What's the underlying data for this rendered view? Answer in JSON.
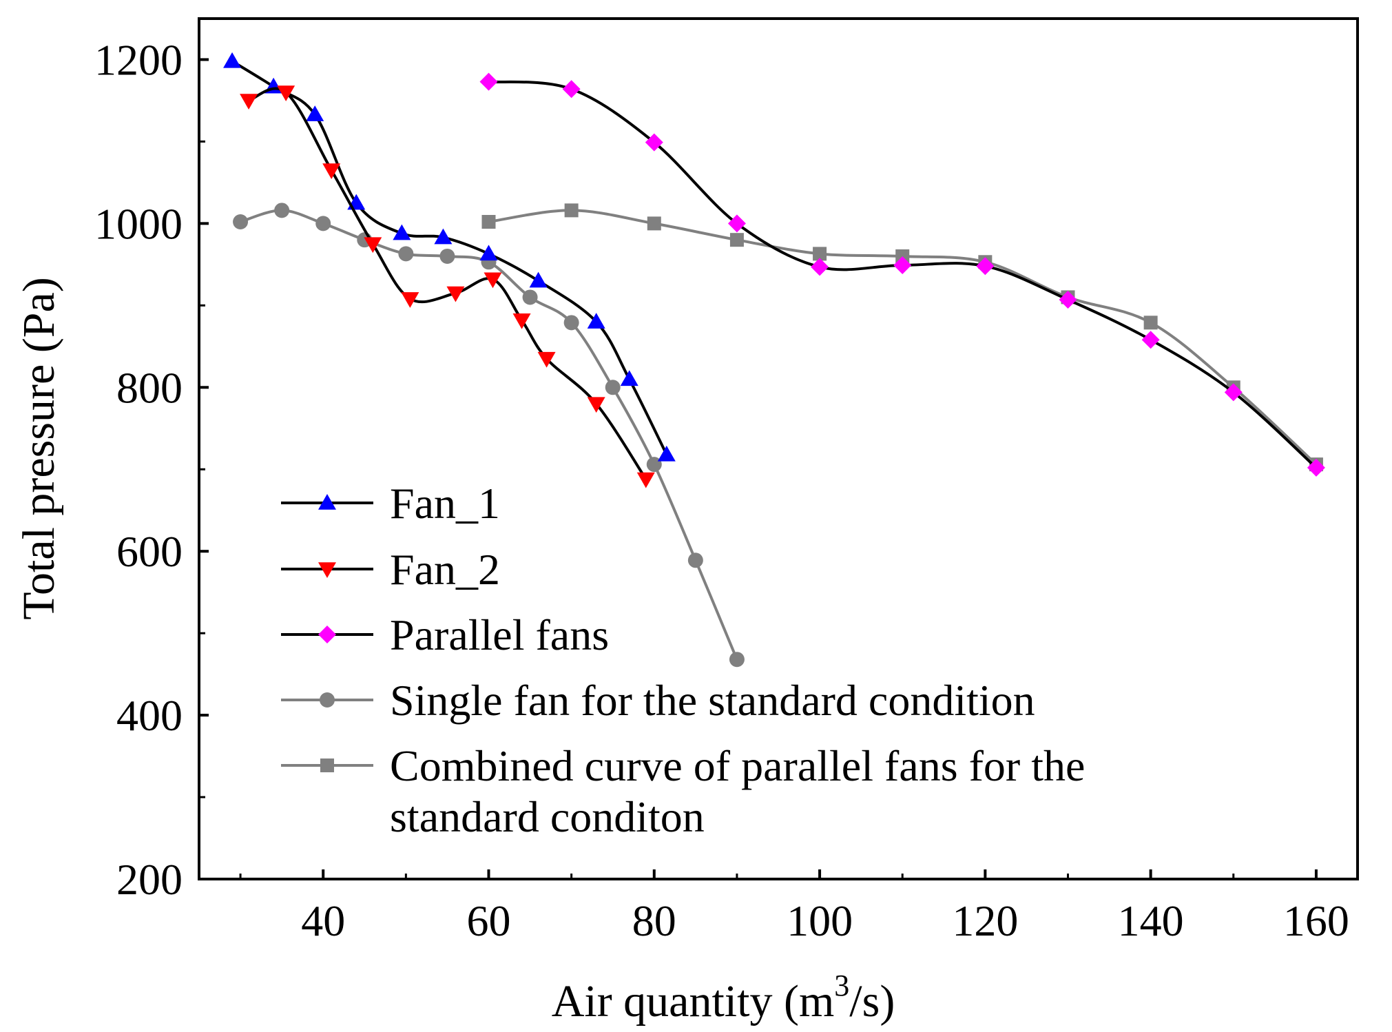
{
  "chart_data": {
    "type": "line",
    "xlabel": "Air quantity (m3/s)",
    "xlabel_base": "Air quantity (m",
    "xlabel_sup": "3",
    "xlabel_tail": "/s)",
    "ylabel": "Total pressure (Pa)",
    "xlim": [
      25,
      165
    ],
    "ylim": [
      200,
      1250
    ],
    "xticks": [
      40,
      60,
      80,
      100,
      120,
      140,
      160
    ],
    "yticks": [
      200,
      400,
      600,
      800,
      1000,
      1200
    ],
    "xtick_labels": [
      "40",
      "60",
      "80",
      "100",
      "120",
      "140",
      "160"
    ],
    "ytick_labels": [
      "200",
      "400",
      "600",
      "800",
      "1000",
      "1200"
    ],
    "legend_position": "bottom-left",
    "legend_lines": [
      "Fan_1",
      "Fan_2",
      "Parallel fans",
      "Single fan for the standard condition",
      "Combined curve of parallel fans for the",
      "standard conditon"
    ],
    "series": [
      {
        "name": "Fan_1",
        "color": "#0000ff",
        "line_color": "#000000",
        "marker": "triangle-up",
        "x": [
          29,
          34,
          39,
          44,
          49.5,
          54.5,
          60,
          66,
          73,
          77,
          81.5
        ],
        "y": [
          1198,
          1167,
          1133,
          1025,
          988,
          983,
          963,
          930,
          880,
          810,
          718
        ]
      },
      {
        "name": "Fan_2",
        "color": "#ff0000",
        "line_color": "#000000",
        "marker": "triangle-down",
        "x": [
          31,
          35.5,
          41,
          46,
          50.5,
          56,
          60.5,
          64,
          67,
          73,
          79
        ],
        "y": [
          1150,
          1160,
          1065,
          975,
          908,
          915,
          932,
          882,
          835,
          780,
          688
        ]
      },
      {
        "name": "Parallel fans",
        "color": "#ff00ff",
        "line_color": "#000000",
        "marker": "diamond",
        "x": [
          60,
          70,
          80,
          90,
          100,
          110,
          120,
          130,
          140,
          150,
          160
        ],
        "y": [
          1173,
          1164,
          1099,
          1000,
          947,
          949,
          948,
          907,
          858,
          794,
          702
        ]
      },
      {
        "name": "Single fan for the standard condition",
        "color": "#808080",
        "line_color": "#808080",
        "marker": "circle",
        "x": [
          30,
          35,
          40,
          45,
          50,
          55,
          60,
          65,
          70,
          75,
          80,
          85,
          90
        ],
        "y": [
          1002,
          1016,
          1000,
          980,
          963,
          960,
          953,
          910,
          879,
          800,
          706,
          589,
          468
        ]
      },
      {
        "name": "Combined curve of parallel fans for the standard conditon",
        "color": "#808080",
        "line_color": "#808080",
        "marker": "square",
        "x": [
          60,
          70,
          80,
          90,
          100,
          110,
          120,
          130,
          140,
          150,
          160
        ],
        "y": [
          1002,
          1016,
          1000,
          980,
          963,
          960,
          953,
          910,
          879,
          800,
          706
        ]
      }
    ]
  }
}
